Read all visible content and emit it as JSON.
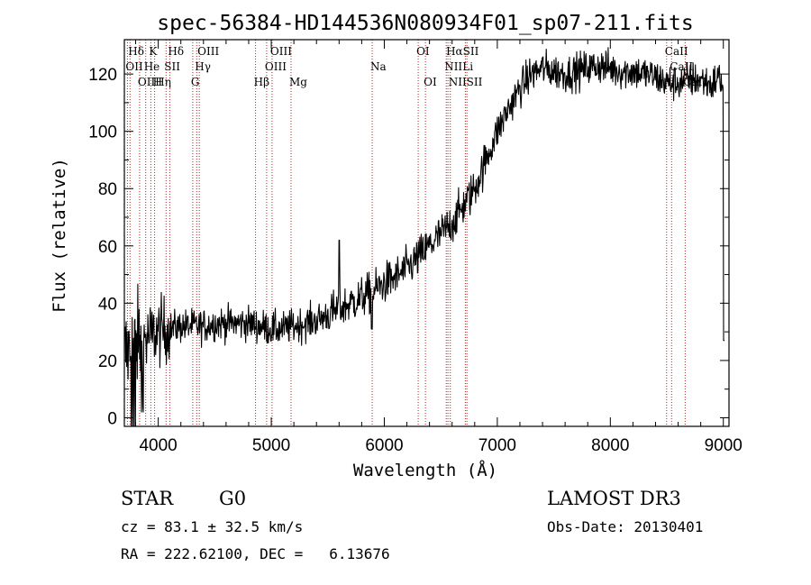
{
  "chart_data": {
    "type": "line",
    "title": "spec-56384-HD144536N080934F01_sp07-211.fits",
    "xlabel": "Wavelength (Å)",
    "ylabel": "Flux (relative)",
    "xlim": [
      3700,
      9050
    ],
    "ylim": [
      -3,
      132
    ],
    "x_ticks": [
      4000,
      5000,
      6000,
      7000,
      8000,
      9000
    ],
    "y_ticks": [
      0,
      20,
      40,
      60,
      80,
      100,
      120
    ],
    "spectrum_nodes": [
      [
        3700,
        22
      ],
      [
        3750,
        24
      ],
      [
        3800,
        26
      ],
      [
        3850,
        27
      ],
      [
        3900,
        28
      ],
      [
        3950,
        29
      ],
      [
        4000,
        30
      ],
      [
        4100,
        31
      ],
      [
        4200,
        32
      ],
      [
        4300,
        32
      ],
      [
        4400,
        32
      ],
      [
        4500,
        33
      ],
      [
        4600,
        33
      ],
      [
        4700,
        33
      ],
      [
        4800,
        33
      ],
      [
        4900,
        32
      ],
      [
        5000,
        31
      ],
      [
        5100,
        31
      ],
      [
        5200,
        32
      ],
      [
        5300,
        33
      ],
      [
        5400,
        34
      ],
      [
        5500,
        36
      ],
      [
        5600,
        38
      ],
      [
        5700,
        40
      ],
      [
        5800,
        42
      ],
      [
        5900,
        44
      ],
      [
        6000,
        47
      ],
      [
        6100,
        49
      ],
      [
        6200,
        52
      ],
      [
        6300,
        56
      ],
      [
        6400,
        60
      ],
      [
        6500,
        64
      ],
      [
        6600,
        68
      ],
      [
        6700,
        74
      ],
      [
        6800,
        80
      ],
      [
        6900,
        90
      ],
      [
        7000,
        100
      ],
      [
        7100,
        108
      ],
      [
        7200,
        115
      ],
      [
        7300,
        120
      ],
      [
        7400,
        122
      ],
      [
        7500,
        121
      ],
      [
        7600,
        120
      ],
      [
        7700,
        121
      ],
      [
        7800,
        122
      ],
      [
        7900,
        123
      ],
      [
        8000,
        122
      ],
      [
        8100,
        121
      ],
      [
        8200,
        121
      ],
      [
        8300,
        120
      ],
      [
        8400,
        119
      ],
      [
        8500,
        117
      ],
      [
        8600,
        117
      ],
      [
        8700,
        118
      ],
      [
        8800,
        118
      ],
      [
        8900,
        116
      ],
      [
        8950,
        119
      ],
      [
        9000,
        117
      ]
    ],
    "spectral_lines": [
      {
        "label": "Hδ",
        "wavelength": 3750,
        "row": 1
      },
      {
        "label": "K",
        "wavelength": 3934,
        "row": 1
      },
      {
        "label": "Hδ",
        "wavelength": 4102,
        "row": 1
      },
      {
        "label": "OIII",
        "wavelength": 4363,
        "row": 1
      },
      {
        "label": "OIII",
        "wavelength": 5007,
        "row": 1
      },
      {
        "label": "OI",
        "wavelength": 6300,
        "row": 1
      },
      {
        "label": "HαSII",
        "wavelength": 6563,
        "row": 1
      },
      {
        "label": "CaII",
        "wavelength": 8498,
        "row": 1
      },
      {
        "label": "OII",
        "wavelength": 3727,
        "row": 2
      },
      {
        "label": "He",
        "wavelength": 3889,
        "row": 2
      },
      {
        "label": "SII",
        "wavelength": 4069,
        "row": 2
      },
      {
        "label": "Hγ",
        "wavelength": 4340,
        "row": 2
      },
      {
        "label": "OIII",
        "wavelength": 4959,
        "row": 2
      },
      {
        "label": "Na",
        "wavelength": 5893,
        "row": 2
      },
      {
        "label": "NII",
        "wavelength": 6548,
        "row": 2
      },
      {
        "label": "Li",
        "wavelength": 6708,
        "row": 2
      },
      {
        "label": "CaII",
        "wavelength": 8542,
        "row": 2
      },
      {
        "label": "OIIHη",
        "wavelength": 3835,
        "row": 3
      },
      {
        "label": "H",
        "wavelength": 3968,
        "row": 3
      },
      {
        "label": "G",
        "wavelength": 4305,
        "row": 3
      },
      {
        "label": "Hβ",
        "wavelength": 4861,
        "row": 3
      },
      {
        "label": "Mg",
        "wavelength": 5175,
        "row": 3
      },
      {
        "label": "OI",
        "wavelength": 6364,
        "row": 3
      },
      {
        "label": "NIISII",
        "wavelength": 6584,
        "row": 3
      },
      {
        "label": "CaII",
        "wavelength": 8662,
        "row": 3
      }
    ],
    "marker_lines": [
      3727,
      3750,
      3835,
      3889,
      3934,
      3968,
      4069,
      4102,
      4305,
      4340,
      4363,
      4861,
      4959,
      5007,
      5175,
      5893,
      6300,
      6364,
      6548,
      6563,
      6584,
      6717,
      6731,
      8498,
      8542,
      8662
    ],
    "colors": {
      "spectrum": "#000000",
      "marker": "#b22222",
      "axes": "#000000"
    }
  },
  "info": {
    "object_class": "STAR",
    "subclass": "G0",
    "survey": "LAMOST DR3",
    "cz": "cz = 83.1 ± 32.5 km/s",
    "obs_date": "Obs-Date: 20130401",
    "coords": "RA = 222.62100, DEC =   6.13676"
  }
}
